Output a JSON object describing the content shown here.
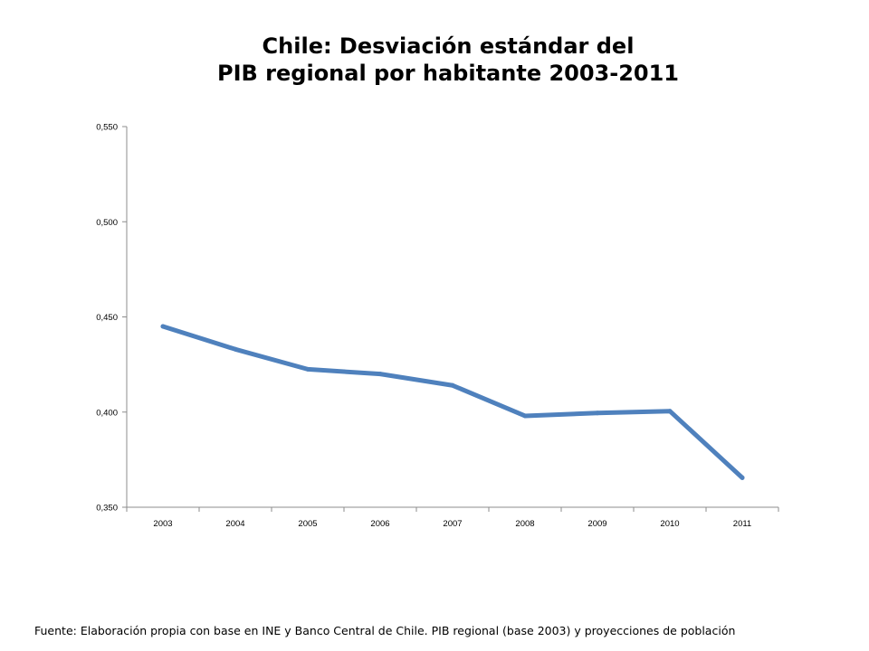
{
  "title_line1": "Chile: Desviación estándar del",
  "title_line2": "PIB regional por habitante 2003-2011",
  "source": "Fuente: Elaboración propia con base en INE y Banco Central de Chile. PIB regional (base 2003) y proyecciones de población",
  "chart_data": {
    "type": "line",
    "title": "Chile: Desviación estándar del PIB regional por habitante 2003-2011",
    "xlabel": "",
    "ylabel": "",
    "categories": [
      "2003",
      "2004",
      "2005",
      "2006",
      "2007",
      "2008",
      "2009",
      "2010",
      "2011"
    ],
    "series": [
      {
        "values": [
          0.445,
          0.433,
          0.4225,
          0.42,
          0.414,
          0.398,
          0.3995,
          0.4005,
          0.3655
        ],
        "color": "#4f81bd"
      }
    ],
    "ylim": [
      0.35,
      0.55
    ],
    "yticks": [
      0.35,
      0.4,
      0.45,
      0.5,
      0.55
    ],
    "ytick_labels": [
      "0,350",
      "0,400",
      "0,450",
      "0,500",
      "0,550"
    ],
    "grid": false,
    "legend": "none"
  }
}
